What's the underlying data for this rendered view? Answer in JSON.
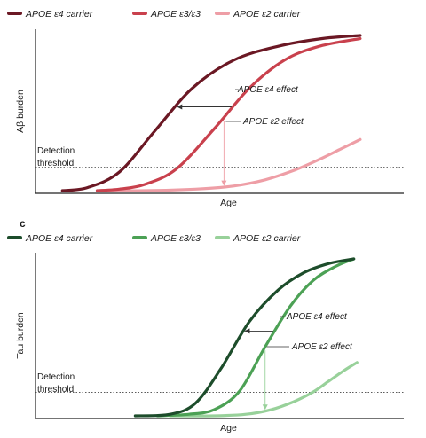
{
  "chart_data": [
    {
      "type": "line",
      "ylabel": "Aβ burden",
      "xlabel": "Age",
      "threshold_label": [
        "Detection",
        "threshold"
      ],
      "threshold_y": 0.15,
      "xlim": [
        0,
        1
      ],
      "ylim": [
        0,
        1
      ],
      "series": [
        {
          "name": "APOE ε4 carrier",
          "color": "#6b1824",
          "x": [
            0.04,
            0.12,
            0.22,
            0.33,
            0.45,
            0.58,
            0.72,
            0.86,
            0.98
          ],
          "y": [
            0.0,
            0.02,
            0.12,
            0.38,
            0.66,
            0.84,
            0.93,
            0.98,
            1.0
          ]
        },
        {
          "name": "APOE ε3/ε3",
          "color": "#c9414d",
          "x": [
            0.15,
            0.22,
            0.3,
            0.4,
            0.52,
            0.63,
            0.74,
            0.85,
            0.98
          ],
          "y": [
            0.0,
            0.01,
            0.04,
            0.14,
            0.4,
            0.66,
            0.84,
            0.93,
            0.98
          ]
        },
        {
          "name": "APOE ε2 carrier",
          "color": "#ee9ea6",
          "x": [
            0.16,
            0.3,
            0.46,
            0.58,
            0.68,
            0.77,
            0.85,
            0.92,
            0.98
          ],
          "y": [
            0.0,
            0.0,
            0.01,
            0.03,
            0.07,
            0.13,
            0.2,
            0.27,
            0.33
          ]
        }
      ],
      "annotations": [
        "APOE ε4 effect",
        "APOE ε2 effect"
      ]
    },
    {
      "panel_label": "c",
      "type": "line",
      "ylabel": "Tau burden",
      "xlabel": "Age",
      "threshold_label": [
        "Detection",
        "threshold"
      ],
      "threshold_y": 0.15,
      "xlim": [
        0,
        1
      ],
      "ylim": [
        0,
        1
      ],
      "series": [
        {
          "name": "APOE ε4 carrier",
          "color": "#1d4d2b",
          "x": [
            0.27,
            0.38,
            0.46,
            0.54,
            0.63,
            0.72,
            0.8,
            0.88,
            0.96
          ],
          "y": [
            0.0,
            0.01,
            0.08,
            0.3,
            0.6,
            0.8,
            0.91,
            0.97,
            1.0
          ]
        },
        {
          "name": "APOE ε3/ε3",
          "color": "#4ca155",
          "x": [
            0.34,
            0.44,
            0.52,
            0.6,
            0.68,
            0.76,
            0.83,
            0.9,
            0.96
          ],
          "y": [
            0.0,
            0.01,
            0.04,
            0.16,
            0.44,
            0.7,
            0.86,
            0.95,
            1.0
          ]
        },
        {
          "name": "APOE ε2 carrier",
          "color": "#98d19a",
          "x": [
            0.38,
            0.52,
            0.62,
            0.7,
            0.77,
            0.83,
            0.88,
            0.93,
            0.97
          ],
          "y": [
            0.0,
            0.0,
            0.01,
            0.04,
            0.09,
            0.15,
            0.22,
            0.29,
            0.34
          ]
        }
      ],
      "annotations": [
        "APOE ε4 effect",
        "APOE ε2 effect"
      ]
    }
  ]
}
